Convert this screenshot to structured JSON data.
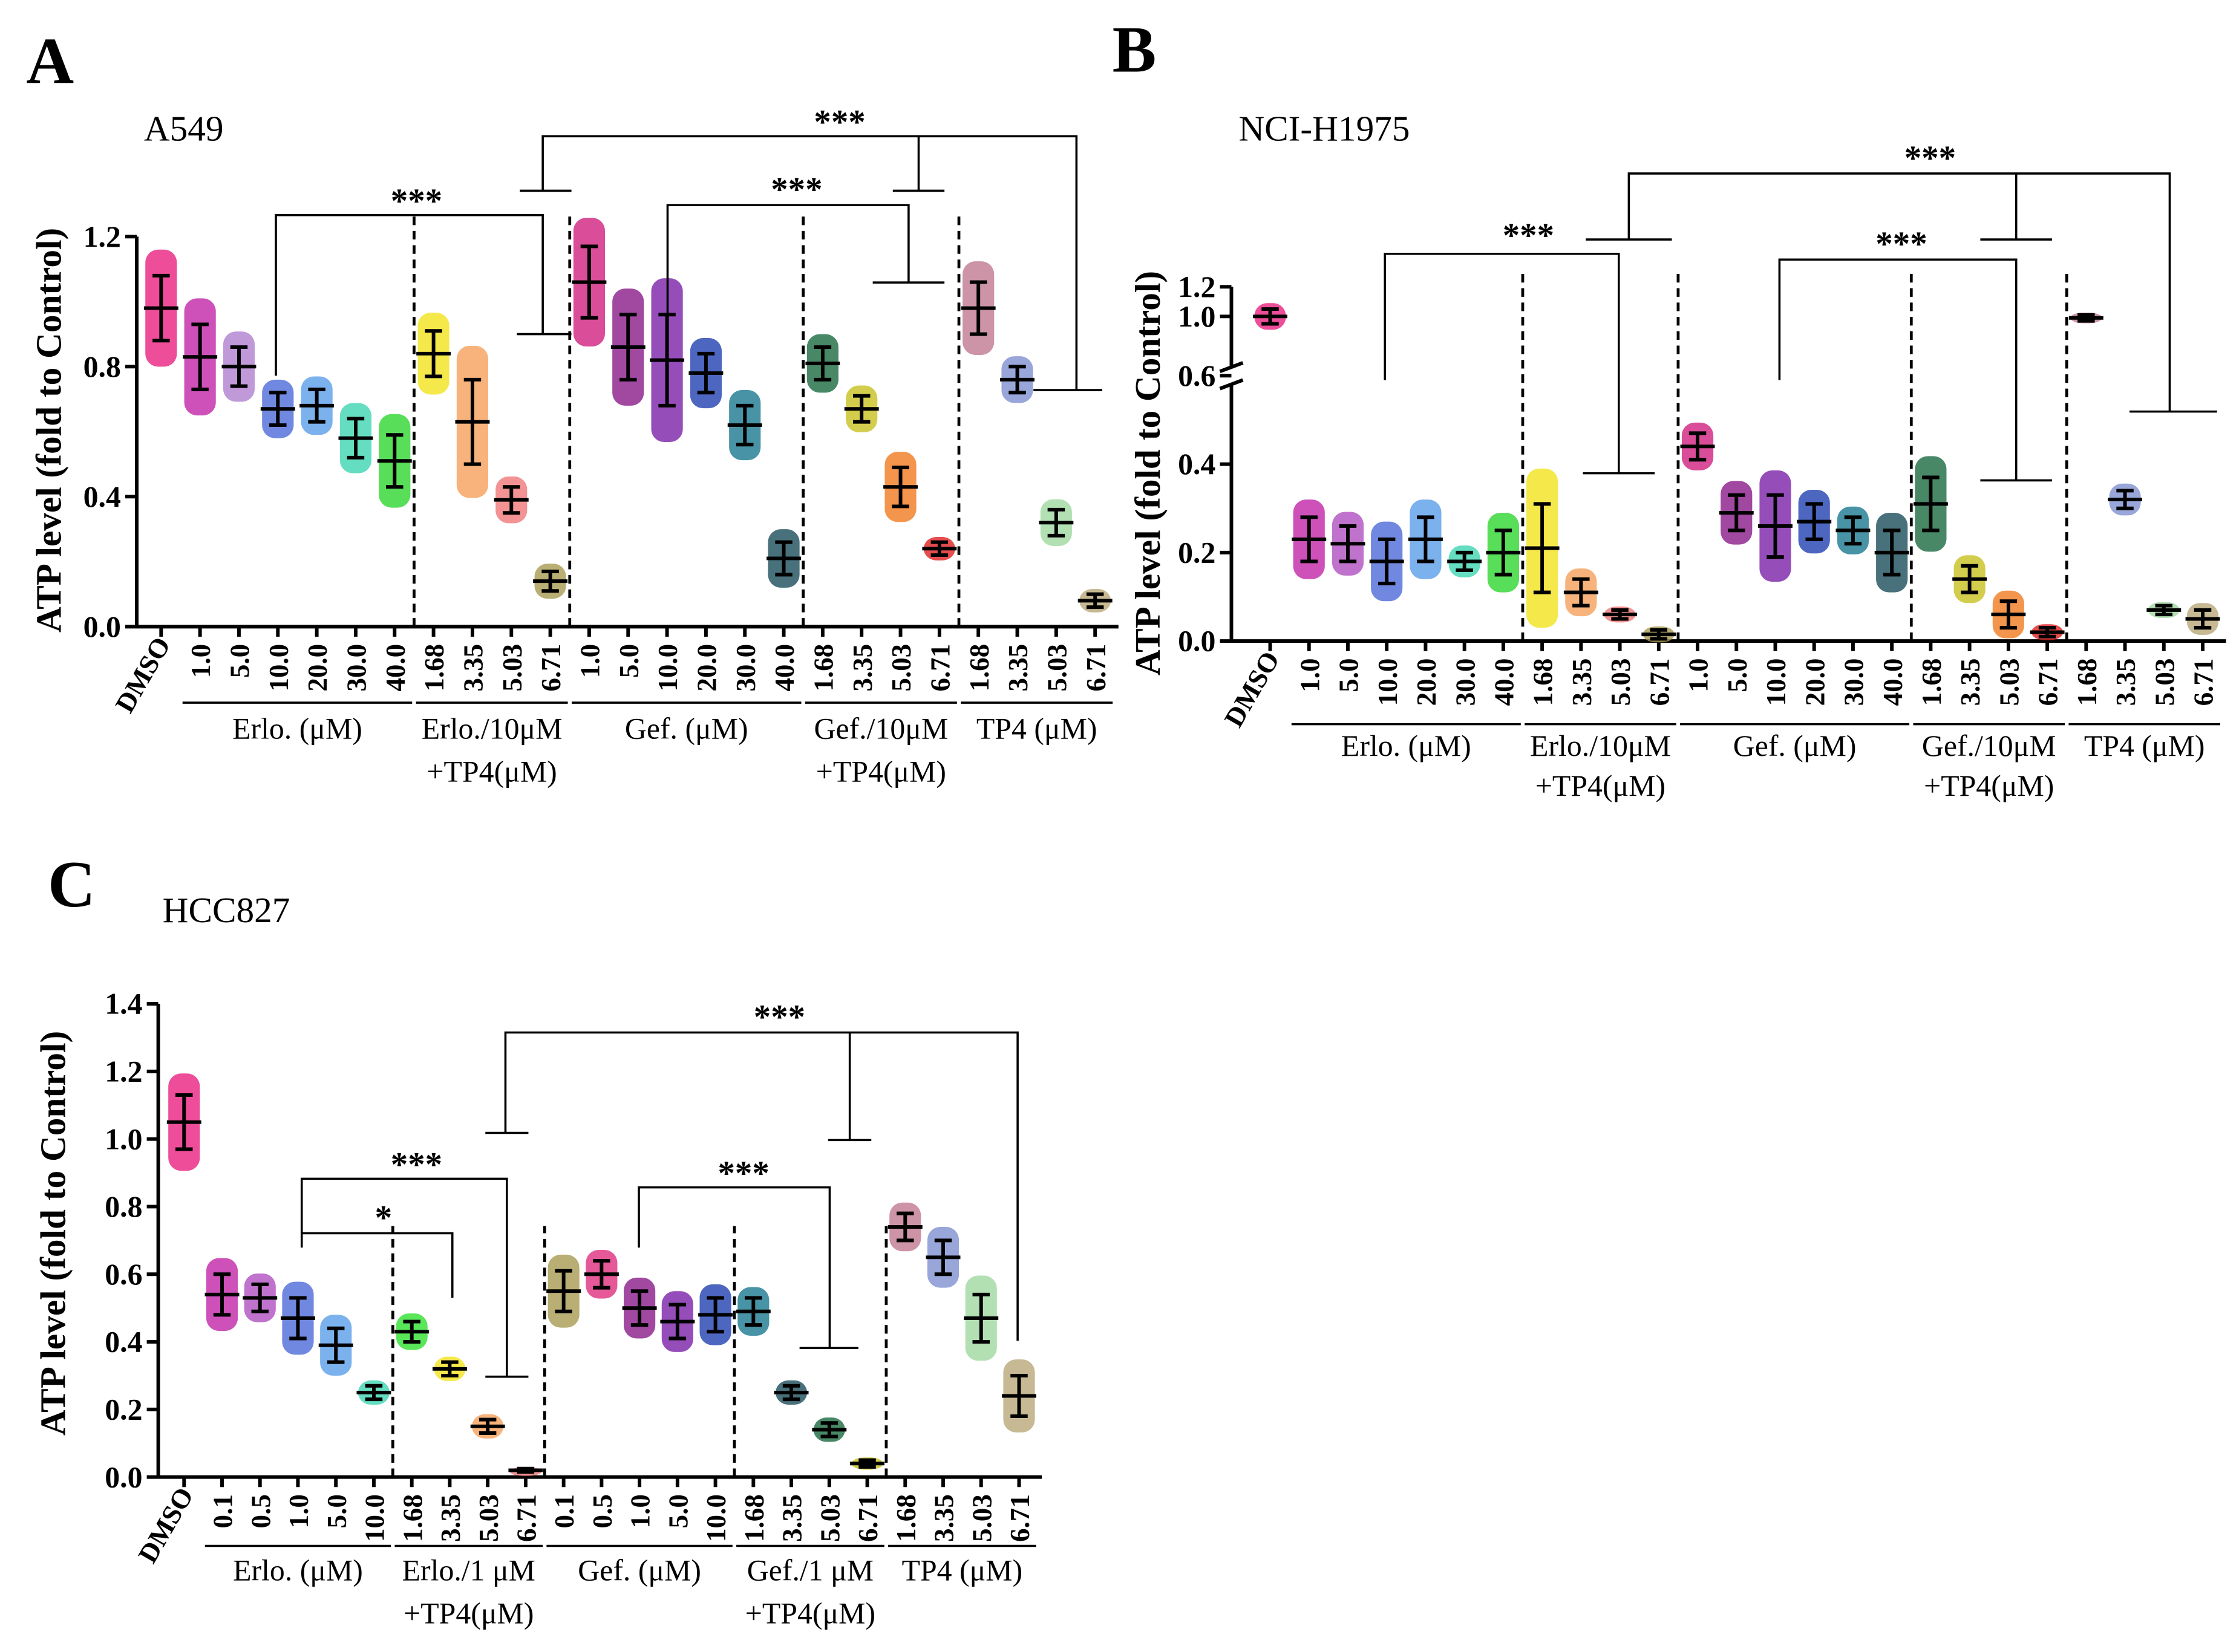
{
  "chart_data": [
    {
      "type": "dotplot",
      "panel": "A",
      "title": "A549",
      "ylabel": "ATP level (fold to Control)",
      "categories": [
        "DMSO",
        "1.0",
        "5.0",
        "10.0",
        "20.0",
        "30.0",
        "40.0",
        "1.68",
        "3.35",
        "5.03",
        "6.71",
        "1.0",
        "5.0",
        "10.0",
        "20.0",
        "30.0",
        "40.0",
        "1.68",
        "3.35",
        "5.03",
        "6.71",
        "1.68",
        "3.35",
        "5.03",
        "6.71"
      ],
      "values": [
        0.98,
        0.83,
        0.8,
        0.67,
        0.68,
        0.58,
        0.51,
        0.84,
        0.63,
        0.39,
        0.14,
        1.06,
        0.86,
        0.82,
        0.78,
        0.62,
        0.21,
        0.81,
        0.67,
        0.43,
        0.24,
        0.98,
        0.76,
        0.32,
        0.08
      ],
      "errors": [
        0.1,
        0.1,
        0.06,
        0.05,
        0.05,
        0.06,
        0.08,
        0.07,
        0.13,
        0.04,
        0.03,
        0.11,
        0.1,
        0.14,
        0.06,
        0.06,
        0.05,
        0.05,
        0.04,
        0.06,
        0.02,
        0.08,
        0.04,
        0.04,
        0.02
      ],
      "colors": [
        "#e8207f",
        "#c026a8",
        "#b07fcf",
        "#4d6ad8",
        "#5a9ee8",
        "#3ed4b0",
        "#2fd62f",
        "#f2e21e",
        "#f5a05a",
        "#f07878",
        "#a89a50",
        "#d0207f",
        "#8a1a8a",
        "#7a22a8",
        "#2040b0",
        "#1a7890",
        "#1a4e5a",
        "#1a6a40",
        "#c8c020",
        "#f07a20",
        "#e02020",
        "#c07890",
        "#8090d0",
        "#a0d8a0",
        "#b8a878"
      ],
      "groups": [
        {
          "label": [
            "Erlo. (μM)"
          ]
        },
        {
          "label": [
            "Erlo./10μM",
            "+TP4(μM)"
          ]
        },
        {
          "label": [
            "Gef. (μM)"
          ]
        },
        {
          "label": [
            "Gef./10μM",
            "+TP4(μM)"
          ]
        },
        {
          "label": [
            "TP4 (μM)"
          ]
        }
      ],
      "annotations": [
        "***",
        "***",
        "***"
      ],
      "ylim": [
        0,
        1.2
      ],
      "yticks": [
        {
          "value": 0,
          "label": "0.0"
        },
        0.4,
        0.8,
        1.2
      ]
    },
    {
      "type": "dotplot",
      "panel": "B",
      "title": "NCI-H1975",
      "ylabel": "ATP level (fold to Control)",
      "categories": [
        "DMSO",
        "1.0",
        "5.0",
        "10.0",
        "20.0",
        "30.0",
        "40.0",
        "1.68",
        "3.35",
        "5.03",
        "6.71",
        "1.0",
        "5.0",
        "10.0",
        "20.0",
        "30.0",
        "40.0",
        "1.68",
        "3.35",
        "5.03",
        "6.71",
        "1.68",
        "3.35",
        "5.03",
        "6.71"
      ],
      "values": [
        1.0,
        0.23,
        0.22,
        0.18,
        0.23,
        0.18,
        0.2,
        0.21,
        0.11,
        0.06,
        0.015,
        0.44,
        0.29,
        0.26,
        0.27,
        0.25,
        0.2,
        0.31,
        0.14,
        0.06,
        0.02,
        0.99,
        0.32,
        0.07,
        0.05
      ],
      "errors": [
        0.05,
        0.05,
        0.04,
        0.05,
        0.05,
        0.02,
        0.05,
        0.1,
        0.03,
        0.01,
        0.01,
        0.03,
        0.04,
        0.07,
        0.04,
        0.03,
        0.05,
        0.06,
        0.03,
        0.03,
        0.01,
        0.02,
        0.02,
        0.01,
        0.02
      ],
      "colors": [
        "#e8207f",
        "#c026a8",
        "#b050c0",
        "#4d6ad8",
        "#5a9ee8",
        "#3ed4b0",
        "#2fd62f",
        "#f2e21e",
        "#f5a05a",
        "#f07878",
        "#a89a50",
        "#d0207f",
        "#8a1a8a",
        "#7a22a8",
        "#2040b0",
        "#1a7890",
        "#1a4e5a",
        "#1a6a40",
        "#c8c020",
        "#f07a20",
        "#e02020",
        "#c07890",
        "#8090d0",
        "#a0d8a0",
        "#b8a878"
      ],
      "groups": [
        {
          "label": [
            "Erlo. (μM)"
          ]
        },
        {
          "label": [
            "Erlo./10μM",
            "+TP4(μM)"
          ]
        },
        {
          "label": [
            "Gef. (μM)"
          ]
        },
        {
          "label": [
            "Gef./10μM",
            "+TP4(μM)"
          ]
        },
        {
          "label": [
            "TP4 (μM)"
          ]
        }
      ],
      "annotations": [
        "***",
        "***",
        "***"
      ],
      "ylim": [
        0,
        1.2
      ],
      "ybreak": 0.6,
      "yticks": [
        {
          "value": 0,
          "label": "0.0"
        },
        0.2,
        0.4,
        0.6,
        {
          "value": 1,
          "label": "1.0"
        },
        1.2
      ]
    },
    {
      "type": "dotplot",
      "panel": "C",
      "title": "HCC827",
      "ylabel": "ATP level (fold to Control)",
      "categories": [
        "DMSO",
        "0.1",
        "0.5",
        "1.0",
        "5.0",
        "10.0",
        "1.68",
        "3.35",
        "5.03",
        "6.71",
        "0.1",
        "0.5",
        "1.0",
        "5.0",
        "10.0",
        "1.68",
        "3.35",
        "5.03",
        "6.71",
        "1.68",
        "3.35",
        "5.03",
        "6.71"
      ],
      "values": [
        1.05,
        0.54,
        0.53,
        0.47,
        0.39,
        0.25,
        0.43,
        0.32,
        0.15,
        0.02,
        0.55,
        0.6,
        0.5,
        0.46,
        0.48,
        0.49,
        0.25,
        0.14,
        0.04,
        0.74,
        0.65,
        0.47,
        0.24
      ],
      "errors": [
        0.08,
        0.06,
        0.04,
        0.06,
        0.05,
        0.02,
        0.03,
        0.02,
        0.02,
        0.005,
        0.06,
        0.04,
        0.05,
        0.05,
        0.05,
        0.04,
        0.02,
        0.02,
        0.01,
        0.04,
        0.05,
        0.07,
        0.06
      ],
      "colors": [
        "#e8207f",
        "#c026a8",
        "#b050c0",
        "#4d6ad8",
        "#5a9ee8",
        "#3ed4b0",
        "#30e030",
        "#f2e21e",
        "#f5a05a",
        "#f07878",
        "#a89a50",
        "#e0307f",
        "#8a1a8a",
        "#7a22a8",
        "#2040b0",
        "#1a7890",
        "#1a4e5a",
        "#1a6a40",
        "#c8c020",
        "#c07890",
        "#8090d0",
        "#a0d8a0",
        "#b8a878"
      ],
      "groups": [
        {
          "label": [
            "Erlo. (μM)"
          ]
        },
        {
          "label": [
            "Erlo./1 μM",
            "+TP4(μM)"
          ]
        },
        {
          "label": [
            "Gef. (μM)"
          ]
        },
        {
          "label": [
            "Gef./1 μM",
            "+TP4(μM)"
          ]
        },
        {
          "label": [
            "TP4 (μM)"
          ]
        }
      ],
      "annotations": [
        "***",
        "*",
        "***",
        "***"
      ],
      "ylim": [
        0,
        1.4
      ],
      "yticks": [
        {
          "value": 0,
          "label": "0.0"
        },
        0.2,
        0.4,
        0.6,
        0.8,
        {
          "value": 1,
          "label": "1.0"
        },
        1.2,
        1.4
      ]
    }
  ]
}
